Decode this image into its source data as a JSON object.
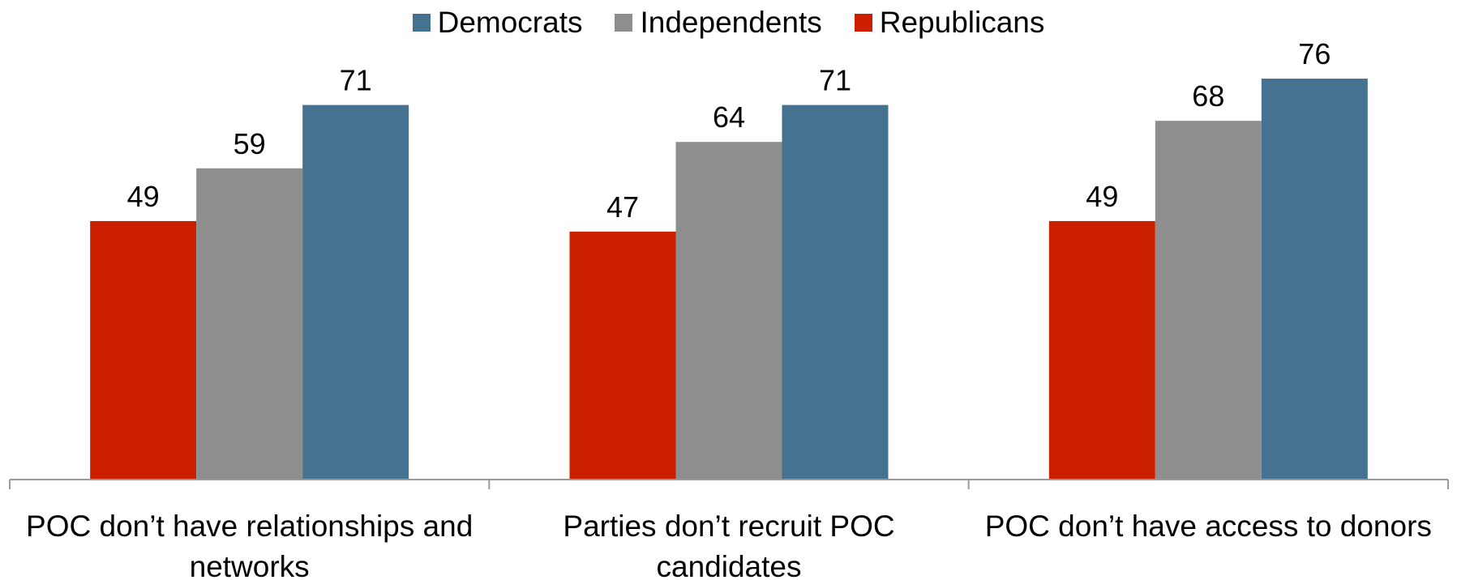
{
  "chart_data": {
    "type": "bar",
    "title": "",
    "xlabel": "",
    "ylabel": "",
    "ylim": [
      0,
      82
    ],
    "grid": false,
    "legend_position": "top-center",
    "legend_order": [
      "Democrats",
      "Independents",
      "Republicans"
    ],
    "categories": [
      [
        "POC don’t have relationships and",
        "networks"
      ],
      [
        "Parties don’t recruit POC",
        "candidates"
      ],
      [
        "POC don’t have access to donors"
      ]
    ],
    "series": [
      {
        "name": "Republicans",
        "color": "#cc1f00",
        "values": [
          49,
          47,
          49
        ]
      },
      {
        "name": "Independents",
        "color": "#8e8e8e",
        "values": [
          59,
          64,
          68
        ]
      },
      {
        "name": "Democrats",
        "color": "#467291",
        "values": [
          71,
          71,
          76
        ]
      }
    ]
  },
  "colors": {
    "axis": "#999999",
    "text": "#000000"
  }
}
